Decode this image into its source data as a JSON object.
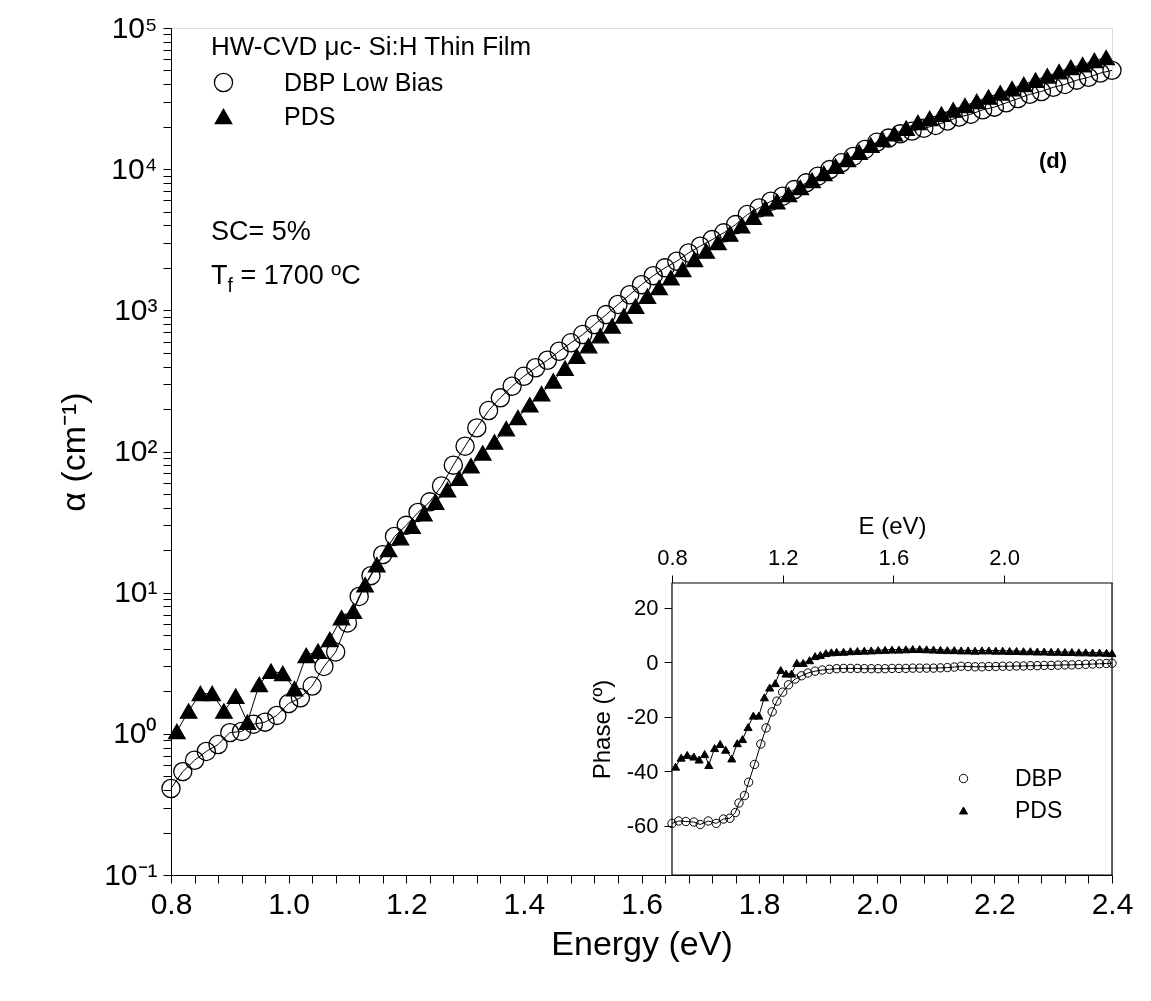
{
  "chart_data": [
    {
      "type": "line",
      "xlabel": "Energy (eV)",
      "ylabel": "α (cm⁻¹)",
      "legend_title": "HW-CVD  μc- Si:H Thin Film",
      "legend": "top left",
      "log": "y",
      "grid": false,
      "line_style": "solid",
      "xlim": [
        0.8,
        2.4
      ],
      "ylim": [
        0.1,
        100000
      ],
      "xticks": [
        0.8,
        {
          "value": 0.84,
          "label": null
        },
        {
          "value": 0.88,
          "label": null
        },
        {
          "value": 0.92,
          "label": null
        },
        {
          "value": 0.96,
          "label": null
        },
        {
          "value": 1.0,
          "label": "1.0"
        },
        {
          "value": 1.04,
          "label": null
        },
        {
          "value": 1.08,
          "label": null
        },
        {
          "value": 1.12,
          "label": null
        },
        {
          "value": 1.16,
          "label": null
        },
        1.2,
        {
          "value": 1.24,
          "label": null
        },
        {
          "value": 1.28,
          "label": null
        },
        {
          "value": 1.32,
          "label": null
        },
        {
          "value": 1.36,
          "label": null
        },
        1.4,
        {
          "value": 1.44,
          "label": null
        },
        {
          "value": 1.48,
          "label": null
        },
        {
          "value": 1.52,
          "label": null
        },
        {
          "value": 1.56,
          "label": null
        },
        1.6,
        {
          "value": 1.64,
          "label": null
        },
        {
          "value": 1.68,
          "label": null
        },
        {
          "value": 1.72,
          "label": null
        },
        {
          "value": 1.76,
          "label": null
        },
        1.8,
        {
          "value": 1.84,
          "label": null
        },
        {
          "value": 1.88,
          "label": null
        },
        {
          "value": 1.92,
          "label": null
        },
        {
          "value": 1.96,
          "label": null
        },
        {
          "value": 2.0,
          "label": "2.0"
        },
        {
          "value": 2.04,
          "label": null
        },
        {
          "value": 2.08,
          "label": null
        },
        {
          "value": 2.12,
          "label": null
        },
        {
          "value": 2.16,
          "label": null
        },
        2.2,
        {
          "value": 2.24,
          "label": null
        },
        {
          "value": 2.28,
          "label": null
        },
        {
          "value": 2.32,
          "label": null
        },
        {
          "value": 2.36,
          "label": null
        },
        2.4
      ],
      "yticks": [
        {
          "value": 0.1,
          "label": "10⁻¹"
        },
        {
          "value": 0.2,
          "label": null
        },
        {
          "value": 0.3,
          "label": null
        },
        {
          "value": 0.4,
          "label": null
        },
        {
          "value": 0.5,
          "label": null
        },
        {
          "value": 0.6,
          "label": null
        },
        {
          "value": 0.7,
          "label": null
        },
        {
          "value": 0.8,
          "label": null
        },
        {
          "value": 0.9,
          "label": null
        },
        {
          "value": 1,
          "label": "10⁰"
        },
        {
          "value": 2,
          "label": null
        },
        {
          "value": 3,
          "label": null
        },
        {
          "value": 4,
          "label": null
        },
        {
          "value": 5,
          "label": null
        },
        {
          "value": 6,
          "label": null
        },
        {
          "value": 7,
          "label": null
        },
        {
          "value": 8,
          "label": null
        },
        {
          "value": 9,
          "label": null
        },
        {
          "value": 10,
          "label": "10¹"
        },
        {
          "value": 20,
          "label": null
        },
        {
          "value": 30,
          "label": null
        },
        {
          "value": 40,
          "label": null
        },
        {
          "value": 50,
          "label": null
        },
        {
          "value": 60,
          "label": null
        },
        {
          "value": 70,
          "label": null
        },
        {
          "value": 80,
          "label": null
        },
        {
          "value": 90,
          "label": null
        },
        {
          "value": 100,
          "label": "10²"
        },
        {
          "value": 200,
          "label": null
        },
        {
          "value": 300,
          "label": null
        },
        {
          "value": 400,
          "label": null
        },
        {
          "value": 500,
          "label": null
        },
        {
          "value": 600,
          "label": null
        },
        {
          "value": 700,
          "label": null
        },
        {
          "value": 800,
          "label": null
        },
        {
          "value": 900,
          "label": null
        },
        {
          "value": 1000,
          "label": "10³"
        },
        {
          "value": 2000,
          "label": null
        },
        {
          "value": 3000,
          "label": null
        },
        {
          "value": 4000,
          "label": null
        },
        {
          "value": 5000,
          "label": null
        },
        {
          "value": 6000,
          "label": null
        },
        {
          "value": 7000,
          "label": null
        },
        {
          "value": 8000,
          "label": null
        },
        {
          "value": 9000,
          "label": null
        },
        {
          "value": 10000,
          "label": "10⁴"
        },
        {
          "value": 20000,
          "label": null
        },
        {
          "value": 30000,
          "label": null
        },
        {
          "value": 40000,
          "label": null
        },
        {
          "value": 50000,
          "label": null
        },
        {
          "value": 60000,
          "label": null
        },
        {
          "value": 70000,
          "label": null
        },
        {
          "value": 80000,
          "label": null
        },
        {
          "value": 90000,
          "label": null
        },
        {
          "value": 100000,
          "label": "10⁵"
        }
      ],
      "annotations": [
        "SC= 5%",
        "T$_{f}$ = 1700 ºC",
        "(d)"
      ],
      "series": [
        {
          "name": "DBP Low Bias",
          "color": "#000000",
          "marker": "circle",
          "x": [
            0.8,
            0.82,
            0.84,
            0.86,
            0.88,
            0.9,
            0.92,
            0.94,
            0.96,
            0.98,
            1.0,
            1.02,
            1.04,
            1.06,
            1.08,
            1.1,
            1.12,
            1.14,
            1.16,
            1.18,
            1.2,
            1.22,
            1.24,
            1.26,
            1.28,
            1.3,
            1.32,
            1.34,
            1.36,
            1.38,
            1.4,
            1.42,
            1.44,
            1.46,
            1.48,
            1.5,
            1.52,
            1.54,
            1.56,
            1.58,
            1.6,
            1.62,
            1.64,
            1.66,
            1.68,
            1.7,
            1.72,
            1.74,
            1.76,
            1.78,
            1.8,
            1.82,
            1.84,
            1.86,
            1.88,
            1.9,
            1.92,
            1.94,
            1.96,
            1.98,
            2.0,
            2.02,
            2.04,
            2.06,
            2.08,
            2.1,
            2.12,
            2.14,
            2.16,
            2.18,
            2.2,
            2.22,
            2.24,
            2.26,
            2.28,
            2.3,
            2.32,
            2.34,
            2.36,
            2.38,
            2.4
          ],
          "values": [
            0.41,
            0.54,
            0.65,
            0.75,
            0.84,
            1.02,
            1.04,
            1.17,
            1.21,
            1.35,
            1.64,
            1.8,
            2.18,
            3.0,
            3.8,
            6.1,
            9.4,
            13.2,
            18.6,
            25,
            30,
            37,
            44,
            57,
            80,
            109,
            147,
            195,
            240,
            290,
            341,
            392,
            443,
            513,
            589,
            674,
            793,
            933,
            1100,
            1290,
            1520,
            1760,
            2000,
            2230,
            2550,
            2850,
            3170,
            3540,
            4050,
            4770,
            5320,
            5930,
            6430,
            7170,
            8000,
            8920,
            9930,
            11100,
            12300,
            13800,
            15500,
            16600,
            17800,
            18600,
            19500,
            20400,
            21900,
            23400,
            24500,
            26300,
            27500,
            29500,
            31600,
            33900,
            35500,
            38000,
            39800,
            42700,
            44700,
            47900,
            50100
          ]
        },
        {
          "name": "PDS",
          "color": "#000000",
          "marker": "triangle",
          "x": [
            0.81,
            0.83,
            0.85,
            0.87,
            0.89,
            0.91,
            0.93,
            0.95,
            0.97,
            0.99,
            1.01,
            1.03,
            1.05,
            1.07,
            1.09,
            1.11,
            1.13,
            1.15,
            1.17,
            1.19,
            1.21,
            1.23,
            1.25,
            1.27,
            1.29,
            1.31,
            1.33,
            1.35,
            1.37,
            1.39,
            1.41,
            1.43,
            1.45,
            1.47,
            1.49,
            1.51,
            1.53,
            1.55,
            1.57,
            1.59,
            1.61,
            1.63,
            1.65,
            1.67,
            1.69,
            1.71,
            1.73,
            1.75,
            1.77,
            1.79,
            1.81,
            1.83,
            1.85,
            1.87,
            1.89,
            1.91,
            1.93,
            1.95,
            1.97,
            1.99,
            2.01,
            2.03,
            2.05,
            2.07,
            2.09,
            2.11,
            2.13,
            2.15,
            2.17,
            2.19,
            2.21,
            2.23,
            2.25,
            2.27,
            2.29,
            2.31,
            2.33,
            2.35,
            2.37,
            2.39
          ],
          "values": [
            1.04,
            1.45,
            1.93,
            1.93,
            1.45,
            1.85,
            1.21,
            2.24,
            2.78,
            2.68,
            2.09,
            3.59,
            3.85,
            4.66,
            6.64,
            7.4,
            11.4,
            15.8,
            20.2,
            24.5,
            29.5,
            36.3,
            43.7,
            53.7,
            64.6,
            79.4,
            97.7,
            117,
            145,
            174,
            214,
            257,
            316,
            389,
            473,
            562,
            661,
            776,
            912,
            1070,
            1260,
            1450,
            1700,
            1950,
            2290,
            2630,
            3020,
            3470,
            3980,
            4570,
            5250,
            5890,
            6610,
            7410,
            8320,
            9330,
            10500,
            11700,
            13200,
            14800,
            16200,
            17800,
            19500,
            21400,
            22900,
            24500,
            26300,
            28200,
            30200,
            32400,
            34700,
            37200,
            39800,
            42700,
            45700,
            49000,
            52500,
            55000,
            58900,
            61700
          ]
        }
      ]
    },
    {
      "type": "line",
      "xlabel": "E (eV)",
      "ylabel": "Phase (º)",
      "legend": "bottom right",
      "grid": false,
      "line_style": "solid",
      "xlim": [
        0.8,
        2.39
      ],
      "ylim": [
        -78,
        29
      ],
      "xticks": [
        0.8,
        1.2,
        1.6,
        {
          "value": 2.0,
          "label": "2.0"
        }
      ],
      "yticks": [
        20,
        0,
        -20,
        -40,
        -60
      ],
      "series": [
        {
          "name": "DBP",
          "color": "#000000",
          "marker": "circle",
          "x": [
            0.8,
            0.824,
            0.85,
            0.879,
            0.902,
            0.931,
            0.96,
            0.986,
            1.009,
            1.029,
            1.042,
            1.062,
            1.077,
            1.098,
            1.121,
            1.14,
            1.162,
            1.179,
            1.2,
            1.221,
            1.245,
            1.268,
            1.291,
            1.317,
            1.343,
            1.369,
            1.395,
            1.42,
            1.445,
            1.47,
            1.495,
            1.52,
            1.545,
            1.57,
            1.595,
            1.62,
            1.645,
            1.67,
            1.695,
            1.72,
            1.745,
            1.77,
            1.795,
            1.82,
            1.845,
            1.87,
            1.895,
            1.92,
            1.945,
            1.97,
            1.995,
            2.02,
            2.045,
            2.07,
            2.095,
            2.12,
            2.145,
            2.17,
            2.195,
            2.22,
            2.245,
            2.27,
            2.295,
            2.32,
            2.345,
            2.37,
            2.39
          ],
          "values": [
            -59.1,
            -58.2,
            -58.4,
            -58.6,
            -59.5,
            -58.2,
            -59.1,
            -57.5,
            -57.2,
            -55.1,
            -51.6,
            -48.9,
            -44.0,
            -37.5,
            -30.0,
            -24.1,
            -18.2,
            -14.3,
            -11.0,
            -8.3,
            -6.2,
            -5.0,
            -4.0,
            -3.3,
            -2.9,
            -2.6,
            -2.4,
            -2.3,
            -2.3,
            -2.3,
            -2.4,
            -2.4,
            -2.4,
            -2.4,
            -2.3,
            -2.3,
            -2.3,
            -2.2,
            -2.2,
            -2.2,
            -2.2,
            -2.1,
            -2.0,
            -1.8,
            -1.5,
            -1.6,
            -1.7,
            -1.7,
            -1.6,
            -1.6,
            -1.5,
            -1.5,
            -1.4,
            -1.4,
            -1.3,
            -1.3,
            -1.2,
            -1.2,
            -1.1,
            -1.0,
            -1.0,
            -0.9,
            -0.8,
            -0.7,
            -0.6,
            -0.5,
            -0.4
          ]
        },
        {
          "name": "PDS",
          "color": "#000000",
          "marker": "triangle",
          "x": [
            0.813,
            0.833,
            0.855,
            0.879,
            0.898,
            0.918,
            0.933,
            0.954,
            0.974,
            0.994,
            1.016,
            1.036,
            1.055,
            1.075,
            1.094,
            1.114,
            1.134,
            1.153,
            1.173,
            1.193,
            1.212,
            1.232,
            1.251,
            1.274,
            1.297,
            1.317,
            1.336,
            1.356,
            1.376,
            1.395,
            1.42,
            1.445,
            1.47,
            1.495,
            1.52,
            1.545,
            1.57,
            1.595,
            1.62,
            1.645,
            1.67,
            1.695,
            1.72,
            1.745,
            1.77,
            1.795,
            1.82,
            1.845,
            1.87,
            1.895,
            1.92,
            1.945,
            1.97,
            1.995,
            2.02,
            2.045,
            2.07,
            2.095,
            2.12,
            2.145,
            2.17,
            2.195,
            2.22,
            2.245,
            2.27,
            2.295,
            2.32,
            2.345,
            2.37,
            2.39
          ],
          "values": [
            -38.3,
            -35.0,
            -34.0,
            -34.6,
            -35.7,
            -33.7,
            -37.7,
            -31.5,
            -30.0,
            -32.1,
            -35.3,
            -29.7,
            -28.2,
            -23.8,
            -19.6,
            -19.6,
            -12.9,
            -9.3,
            -7.7,
            -2.9,
            -4.2,
            -4.2,
            -0.3,
            -0.3,
            0.7,
            2.2,
            2.6,
            3.3,
            3.6,
            3.7,
            3.8,
            4.0,
            4.1,
            4.2,
            4.3,
            4.4,
            4.5,
            4.6,
            4.6,
            4.7,
            4.8,
            4.8,
            4.7,
            4.6,
            4.5,
            4.4,
            4.4,
            4.3,
            4.3,
            4.2,
            4.3,
            4.3,
            4.2,
            4.2,
            4.1,
            4.1,
            4.0,
            4.0,
            3.9,
            3.9,
            3.8,
            3.8,
            3.7,
            3.7,
            3.6,
            3.6,
            3.5,
            3.5,
            3.4,
            3.3
          ]
        }
      ]
    }
  ]
}
